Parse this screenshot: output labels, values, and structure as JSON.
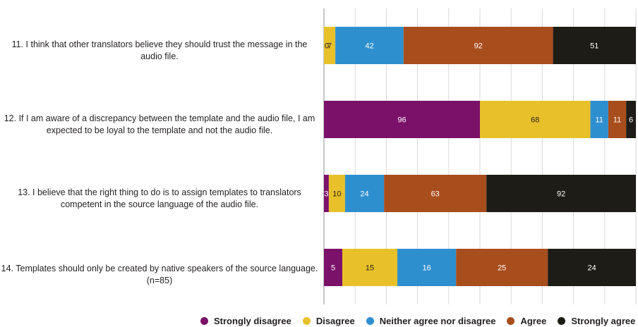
{
  "chart_data": {
    "type": "bar",
    "orientation": "horizontal",
    "stacked": "percent",
    "grid": true,
    "legend_position": "bottom",
    "categories": [
      "11. I think that other translators believe they should trust the message in the audio file.",
      "12. If I am aware of a discrepancy between the template and the audio file, I am expected to be loyal to the template and not the audio file.",
      "13. I believe that the right thing to do is to assign templates to translators competent in the source language of the audio file.",
      "14. Templates should only be created by native speakers of the source language. (n=85)"
    ],
    "series": [
      {
        "name": "Strongly disagree",
        "color": "#7b1169",
        "values": [
          0,
          96,
          3,
          5
        ]
      },
      {
        "name": "Disagree",
        "color": "#e8c12a",
        "values": [
          7,
          68,
          10,
          15
        ]
      },
      {
        "name": "Neither agree nor disagree",
        "color": "#2e8fcf",
        "values": [
          42,
          11,
          24,
          16
        ]
      },
      {
        "name": "Agree",
        "color": "#a84d1c",
        "values": [
          92,
          11,
          63,
          25
        ]
      },
      {
        "name": "Strongly agree",
        "color": "#1d1c16",
        "values": [
          51,
          6,
          92,
          24
        ]
      }
    ]
  }
}
